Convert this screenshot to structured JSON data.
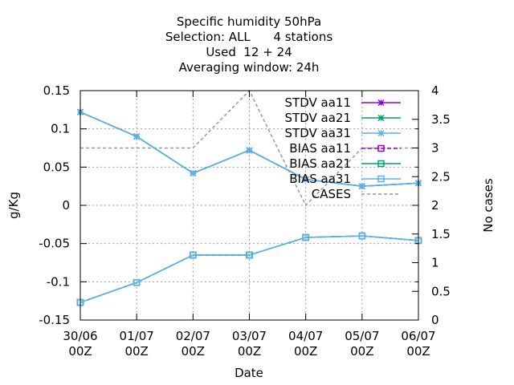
{
  "chart_data": {
    "type": "line",
    "title": [
      "Specific humidity 50hPa",
      "Selection: ALL      4 stations",
      "Used  12 + 24",
      "Averaging window: 24h"
    ],
    "xlabel": "Date",
    "ylabel": "g/Kg",
    "y2label": "No cases",
    "categories": [
      [
        "30/06",
        "00Z"
      ],
      [
        "01/07",
        "00Z"
      ],
      [
        "02/07",
        "00Z"
      ],
      [
        "03/07",
        "00Z"
      ],
      [
        "04/07",
        "00Z"
      ],
      [
        "05/07",
        "00Z"
      ],
      [
        "06/07",
        "00Z"
      ]
    ],
    "ylim": [
      -0.15,
      0.15
    ],
    "y_ticks": [
      "0.15",
      "0.1",
      "0.05",
      "0",
      "-0.05",
      "-0.1",
      "-0.15"
    ],
    "y2lim": [
      0,
      4
    ],
    "y2_ticks": [
      "4",
      "3.5",
      "3",
      "2.5",
      "2",
      "1.5",
      "1",
      "0.5",
      "0"
    ],
    "grid": true,
    "legend_position": "top-right",
    "series": [
      {
        "name": "STDV aa11",
        "axis": "y",
        "color": "#9400d3",
        "marker": "star",
        "dashed": false,
        "values": [
          0.122,
          0.09,
          0.042,
          0.072,
          0.034,
          0.025,
          0.029
        ]
      },
      {
        "name": "STDV aa21",
        "axis": "y",
        "color": "#009e73",
        "marker": "star",
        "dashed": false,
        "values": [
          0.122,
          0.09,
          0.042,
          0.072,
          0.034,
          0.025,
          0.029
        ]
      },
      {
        "name": "STDV aa31",
        "axis": "y",
        "color": "#56b4e9",
        "marker": "star",
        "dashed": false,
        "values": [
          0.122,
          0.09,
          0.042,
          0.072,
          0.034,
          0.025,
          0.029
        ]
      },
      {
        "name": "BIAS aa11",
        "axis": "y",
        "color": "#9400d3",
        "marker": "square",
        "dashed": true,
        "values": [
          -0.127,
          -0.101,
          -0.065,
          -0.065,
          -0.042,
          -0.04,
          -0.046
        ]
      },
      {
        "name": "BIAS aa21",
        "axis": "y",
        "color": "#009e73",
        "marker": "square",
        "dashed": false,
        "values": [
          -0.127,
          -0.101,
          -0.065,
          -0.065,
          -0.042,
          -0.04,
          -0.046
        ]
      },
      {
        "name": "BIAS aa31",
        "axis": "y",
        "color": "#56b4e9",
        "marker": "square",
        "dashed": false,
        "values": [
          -0.127,
          -0.101,
          -0.065,
          -0.065,
          -0.042,
          -0.04,
          -0.046
        ]
      },
      {
        "name": "CASES",
        "axis": "y2",
        "color": "#999999",
        "marker": "none",
        "dashed": true,
        "values": [
          3,
          3,
          3,
          4,
          2,
          3,
          3
        ]
      }
    ]
  }
}
